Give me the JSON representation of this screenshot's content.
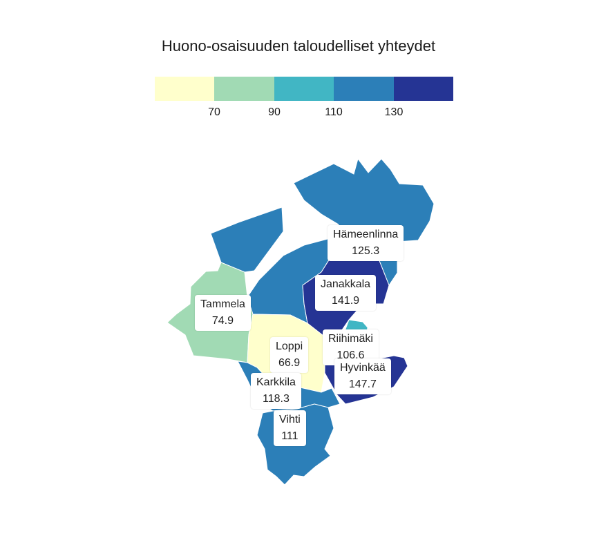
{
  "title": "Huono-osaisuuden taloudelliset yhteydet",
  "legend": {
    "colors": [
      "#ffffcc",
      "#a1dab4",
      "#41b6c4",
      "#2c7fb8",
      "#253494"
    ],
    "ticks": [
      "70",
      "90",
      "110",
      "130"
    ]
  },
  "regions": [
    {
      "name": "Hämeenlinna",
      "value": "125.3"
    },
    {
      "name": "Janakkala",
      "value": "141.9"
    },
    {
      "name": "Tammela",
      "value": "74.9"
    },
    {
      "name": "Riihimäki",
      "value": "106.6"
    },
    {
      "name": "Loppi",
      "value": "66.9"
    },
    {
      "name": "Hyvinkää",
      "value": "147.7"
    },
    {
      "name": "Karkkila",
      "value": "118.3"
    },
    {
      "name": "Vihti",
      "value": "111"
    }
  ]
}
